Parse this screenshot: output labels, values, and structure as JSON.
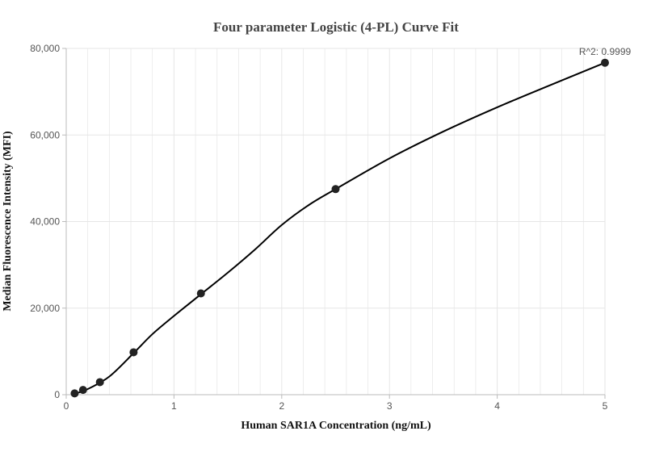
{
  "chart_data": {
    "type": "scatter",
    "title": "Four parameter Logistic (4-PL) Curve Fit",
    "xlabel": "Human SAR1A Concentration (ng/mL)",
    "ylabel": "Median Fluorescence Intensity (MFI)",
    "xlim": [
      0,
      5
    ],
    "ylim": [
      0,
      80000
    ],
    "x_ticks": [
      "0",
      "1",
      "2",
      "3",
      "4",
      "5"
    ],
    "y_ticks": [
      "0",
      "20,000",
      "40,000",
      "60,000",
      "80,000"
    ],
    "x_tick_values": [
      0,
      1,
      2,
      3,
      4,
      5
    ],
    "y_tick_values": [
      0,
      20000,
      40000,
      60000,
      80000
    ],
    "grid": true,
    "annotation": "R^2: 0.9999",
    "points": [
      {
        "x": 0.078,
        "y": 300
      },
      {
        "x": 0.156,
        "y": 1100
      },
      {
        "x": 0.3125,
        "y": 2900
      },
      {
        "x": 0.625,
        "y": 9800
      },
      {
        "x": 1.25,
        "y": 23400
      },
      {
        "x": 2.5,
        "y": 47500
      },
      {
        "x": 5,
        "y": 76700
      }
    ],
    "fit_curve": [
      {
        "x": 0.078,
        "y": 200
      },
      {
        "x": 0.2,
        "y": 1300
      },
      {
        "x": 0.4,
        "y": 4200
      },
      {
        "x": 0.625,
        "y": 9600
      },
      {
        "x": 0.8,
        "y": 14000
      },
      {
        "x": 1.0,
        "y": 18200
      },
      {
        "x": 1.25,
        "y": 23200
      },
      {
        "x": 1.5,
        "y": 28200
      },
      {
        "x": 1.75,
        "y": 33500
      },
      {
        "x": 2.0,
        "y": 39200
      },
      {
        "x": 2.25,
        "y": 43800
      },
      {
        "x": 2.5,
        "y": 47500
      },
      {
        "x": 3.0,
        "y": 54600
      },
      {
        "x": 3.5,
        "y": 60800
      },
      {
        "x": 4.0,
        "y": 66400
      },
      {
        "x": 4.5,
        "y": 71600
      },
      {
        "x": 5.0,
        "y": 76700
      }
    ],
    "colors": {
      "curve": "#000000",
      "points": "#222222",
      "grid": "#e6e6e6",
      "axis": "#bbbbbb"
    }
  }
}
